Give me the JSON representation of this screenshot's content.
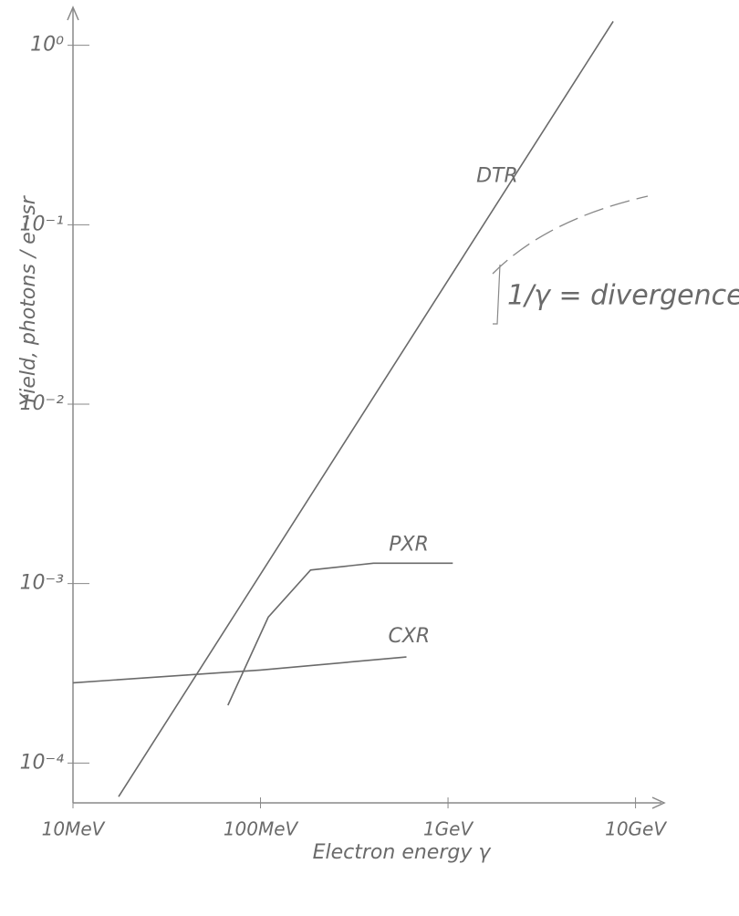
{
  "chart_data": {
    "type": "line",
    "x_label": "Electron energy γ",
    "y_label": "Yield, photons / e⁻·sr",
    "annotation": "1/γ = divergence",
    "x_scale": "log",
    "y_scale": "log",
    "xlim": [
      10,
      13000
    ],
    "ylim": [
      6e-05,
      1.5
    ],
    "xticks": [
      {
        "value": 10,
        "label": "10MeV"
      },
      {
        "value": 100,
        "label": "100MeV"
      },
      {
        "value": 1000,
        "label": "1GeV"
      },
      {
        "value": 10000,
        "label": "10GeV"
      }
    ],
    "yticks": [
      {
        "value": 1,
        "label": "10⁰"
      },
      {
        "value": 0.1,
        "label": "10⁻¹"
      },
      {
        "value": 0.01,
        "label": "10⁻²"
      },
      {
        "value": 0.001,
        "label": "10⁻³"
      },
      {
        "value": 0.0001,
        "label": "10⁻⁴"
      }
    ],
    "series": [
      {
        "name": "DTR",
        "color": "#6a6a6a",
        "x": [
          17.5,
          7600
        ],
        "values": [
          6.5e-05,
          1.36
        ]
      },
      {
        "name": "PXR",
        "color": "#6a6a6a",
        "x": [
          67,
          110,
          185,
          400,
          1060
        ],
        "values": [
          0.00021,
          0.00065,
          0.00119,
          0.0013,
          0.0013
        ]
      },
      {
        "name": "CXR",
        "color": "#6a6a6a",
        "x": [
          10,
          100,
          600
        ],
        "values": [
          0.00028,
          0.00033,
          0.00039
        ]
      }
    ]
  }
}
